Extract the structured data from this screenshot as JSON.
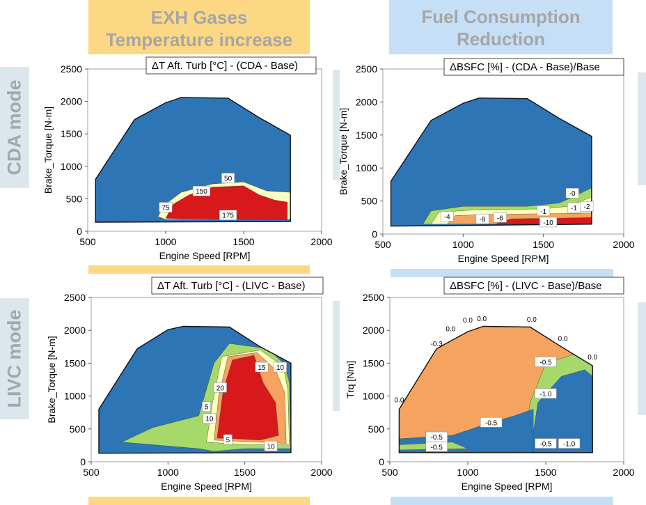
{
  "headers": {
    "exh": [
      "EXH Gases",
      "Temperature increase"
    ],
    "fuel": [
      "Fuel Consumption",
      "Reduction"
    ]
  },
  "row_labels": [
    "CDA mode",
    "LIVC mode"
  ],
  "colors": {
    "blue": "#2e75b6",
    "red": "#d7191c",
    "orange": "#f4a460",
    "yellow": "#ffffbf",
    "light_green": "#a6d96a",
    "header_orange": "#fcd884",
    "header_blue": "#c5dff7",
    "row_label_bg": "#dbe7ec"
  },
  "chart_data": [
    {
      "type": "heatmap",
      "title": "ΔT Aft. Turb [°C]  - (CDA - Base)",
      "xlabel": "Engine Speed [RPM]",
      "ylabel": "Brake_Torque [N-m]",
      "xlim": [
        500,
        2000
      ],
      "ylim": [
        0,
        2500
      ],
      "xticks": [
        "500",
        "1000",
        "1500",
        "2000"
      ],
      "yticks": [
        "0",
        "500",
        "1000",
        "1500",
        "2000",
        "2500"
      ],
      "grid": false,
      "boundary": [
        [
          550,
          140
        ],
        [
          550,
          800
        ],
        [
          800,
          1720
        ],
        [
          1000,
          1980
        ],
        [
          1100,
          2060
        ],
        [
          1400,
          2050
        ],
        [
          1600,
          1750
        ],
        [
          1800,
          1480
        ],
        [
          1800,
          150
        ]
      ],
      "contour_labels": [
        {
          "x": 1400,
          "y": 820,
          "text": "50"
        },
        {
          "x": 1230,
          "y": 620,
          "text": "150"
        },
        {
          "x": 1000,
          "y": 370,
          "text": "75"
        },
        {
          "x": 1400,
          "y": 250,
          "text": "175"
        }
      ]
    },
    {
      "type": "heatmap",
      "title": "ΔBSFC [%] - (CDA - Base)/Base",
      "xlabel": "Engine Speed [RPM]",
      "ylabel": "Brake_Torque [N-m]",
      "xlim": [
        500,
        2000
      ],
      "ylim": [
        0,
        2500
      ],
      "xticks": [
        "500",
        "1000",
        "1500",
        "2000"
      ],
      "yticks": [
        "0",
        "500",
        "1000",
        "1500",
        "2000",
        "2500"
      ],
      "grid": false,
      "boundary": [
        [
          550,
          120
        ],
        [
          550,
          800
        ],
        [
          800,
          1720
        ],
        [
          1000,
          1980
        ],
        [
          1100,
          2060
        ],
        [
          1400,
          2050
        ],
        [
          1600,
          1750
        ],
        [
          1800,
          1480
        ],
        [
          1800,
          150
        ]
      ],
      "contour_labels": [
        {
          "x": 1680,
          "y": 620,
          "text": "-0"
        },
        {
          "x": 1770,
          "y": 420,
          "text": "-2"
        },
        {
          "x": 1690,
          "y": 400,
          "text": "-1"
        },
        {
          "x": 1500,
          "y": 350,
          "text": "-1"
        },
        {
          "x": 900,
          "y": 270,
          "text": "-4"
        },
        {
          "x": 1120,
          "y": 230,
          "text": "-8"
        },
        {
          "x": 1230,
          "y": 250,
          "text": "-6"
        },
        {
          "x": 1530,
          "y": 180,
          "text": "-10"
        }
      ]
    },
    {
      "type": "heatmap",
      "title": "ΔT Aft. Turb [°C]  - (LIVC - Base)",
      "xlabel": "Engine Speed [RPM]",
      "ylabel": "Brake_Torque [N-m]",
      "xlim": [
        500,
        2000
      ],
      "ylim": [
        0,
        2500
      ],
      "xticks": [
        "500",
        "1000",
        "1500",
        "2000"
      ],
      "yticks": [
        "0",
        "500",
        "1000",
        "1500",
        "2000",
        "2500"
      ],
      "grid": false,
      "boundary": [
        [
          550,
          130
        ],
        [
          550,
          800
        ],
        [
          800,
          1720
        ],
        [
          1000,
          2010
        ],
        [
          1100,
          2060
        ],
        [
          1400,
          2050
        ],
        [
          1600,
          1750
        ],
        [
          1800,
          1500
        ],
        [
          1800,
          140
        ]
      ],
      "contour_labels": [
        {
          "x": 1610,
          "y": 1440,
          "text": "15"
        },
        {
          "x": 1730,
          "y": 1440,
          "text": "10"
        },
        {
          "x": 1340,
          "y": 1130,
          "text": "20"
        },
        {
          "x": 1250,
          "y": 840,
          "text": "5"
        },
        {
          "x": 1270,
          "y": 660,
          "text": "10"
        },
        {
          "x": 1390,
          "y": 340,
          "text": "5"
        },
        {
          "x": 1670,
          "y": 240,
          "text": "10"
        }
      ]
    },
    {
      "type": "heatmap",
      "title": "ΔBSFC [%] - (LIVC - Base)/Base",
      "xlabel": "Engine Speed [RPM]",
      "ylabel": "Trq [Nm]",
      "xlim": [
        500,
        2000
      ],
      "ylim": [
        0,
        2500
      ],
      "xticks": [
        "500",
        "1000",
        "1500",
        "2000"
      ],
      "yticks": [
        "0",
        "500",
        "1000",
        "1500",
        "2000",
        "2500"
      ],
      "grid": false,
      "boundary": [
        [
          560,
          140
        ],
        [
          560,
          800
        ],
        [
          800,
          1720
        ],
        [
          1000,
          1980
        ],
        [
          1100,
          2060
        ],
        [
          1400,
          2050
        ],
        [
          1600,
          1750
        ],
        [
          1800,
          1460
        ],
        [
          1800,
          140
        ]
      ],
      "contour_labels": [
        {
          "x": 560,
          "y": 950,
          "text": "0.0"
        },
        {
          "x": 800,
          "y": 1800,
          "text": "-0.3"
        },
        {
          "x": 890,
          "y": 2030,
          "text": "0.0"
        },
        {
          "x": 1000,
          "y": 2160,
          "text": "0.0"
        },
        {
          "x": 1090,
          "y": 2180,
          "text": "0.0"
        },
        {
          "x": 1410,
          "y": 2170,
          "text": "0.0"
        },
        {
          "x": 1610,
          "y": 1880,
          "text": "0.0"
        },
        {
          "x": 1800,
          "y": 1600,
          "text": "0.0"
        },
        {
          "x": 1500,
          "y": 1520,
          "text": "-0.5"
        },
        {
          "x": 1500,
          "y": 1040,
          "text": "-1.0"
        },
        {
          "x": 1150,
          "y": 600,
          "text": "-0.5"
        },
        {
          "x": 800,
          "y": 380,
          "text": "-0.5"
        },
        {
          "x": 800,
          "y": 230,
          "text": "-0.5"
        },
        {
          "x": 1500,
          "y": 280,
          "text": "-0.5"
        },
        {
          "x": 1650,
          "y": 280,
          "text": "-1.0"
        }
      ]
    }
  ]
}
